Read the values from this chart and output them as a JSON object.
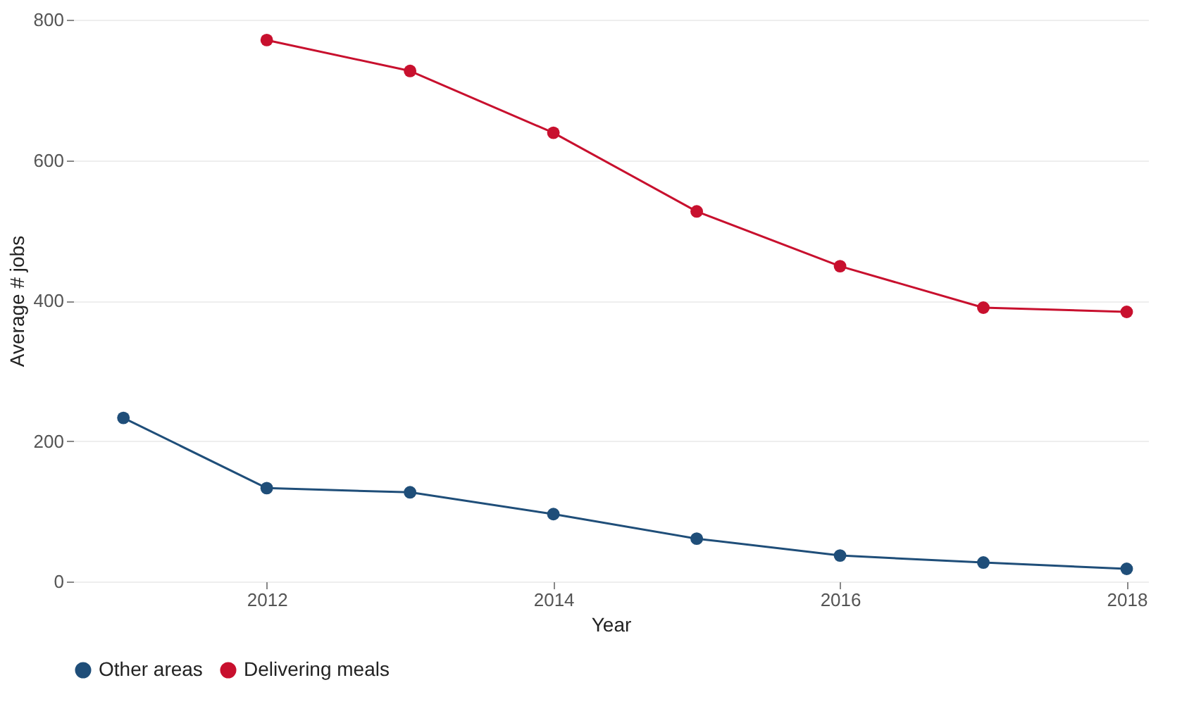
{
  "chart_data": {
    "type": "line",
    "xlabel": "Year",
    "ylabel": "Average # jobs",
    "x": [
      2011,
      2012,
      2013,
      2014,
      2015,
      2016,
      2017,
      2018
    ],
    "series": [
      {
        "name": "Other areas",
        "color": "#1f4e79",
        "values": [
          233,
          133,
          127,
          96,
          61,
          37,
          27,
          18
        ]
      },
      {
        "name": "Delivering meals",
        "color": "#c8102e",
        "values": [
          null,
          771,
          727,
          639,
          527,
          449,
          390,
          384
        ]
      }
    ],
    "xlim": [
      2010.65,
      2018.15
    ],
    "xticks": [
      2012,
      2014,
      2016,
      2018
    ],
    "ylim": [
      0,
      800
    ],
    "yticks": [
      0,
      200,
      400,
      600,
      800
    ],
    "grid": "y",
    "legend": "bottom",
    "marker": "circle",
    "line_style": "solid"
  }
}
